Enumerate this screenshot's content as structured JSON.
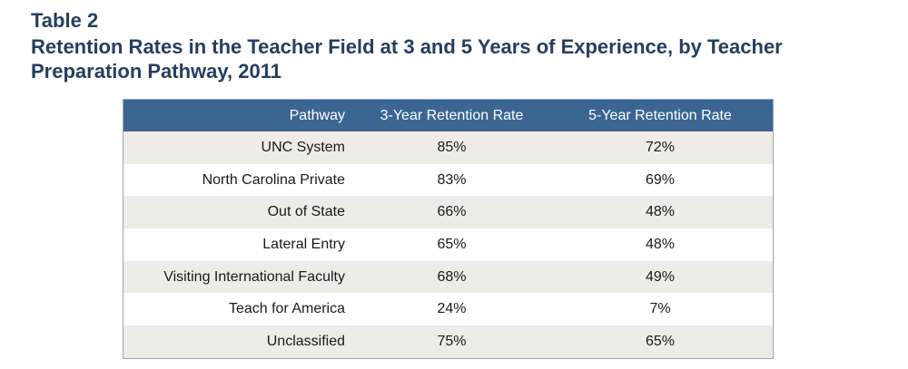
{
  "heading": {
    "label": "Table 2",
    "title": "Retention Rates in the Teacher Field at 3 and 5 Years of Experience, by Teacher Preparation Pathway, 2011"
  },
  "table": {
    "headers": [
      "Pathway",
      "3-Year Retention Rate",
      "5-Year Retention Rate"
    ],
    "rows": [
      {
        "pathway": "UNC System",
        "rate_3yr": "85%",
        "rate_5yr": "72%"
      },
      {
        "pathway": "North Carolina Private",
        "rate_3yr": "83%",
        "rate_5yr": "69%"
      },
      {
        "pathway": "Out of State",
        "rate_3yr": "66%",
        "rate_5yr": "48%"
      },
      {
        "pathway": "Lateral Entry",
        "rate_3yr": "65%",
        "rate_5yr": "48%"
      },
      {
        "pathway": "Visiting International Faculty",
        "rate_3yr": "68%",
        "rate_5yr": "49%"
      },
      {
        "pathway": "Teach for America",
        "rate_3yr": "24%",
        "rate_5yr": "7%"
      },
      {
        "pathway": "Unclassified",
        "rate_3yr": "75%",
        "rate_5yr": "65%"
      }
    ]
  },
  "colors": {
    "title": "#243f5f",
    "header_bg": "#3b6691",
    "row_alt_bg": "#efebe6"
  }
}
